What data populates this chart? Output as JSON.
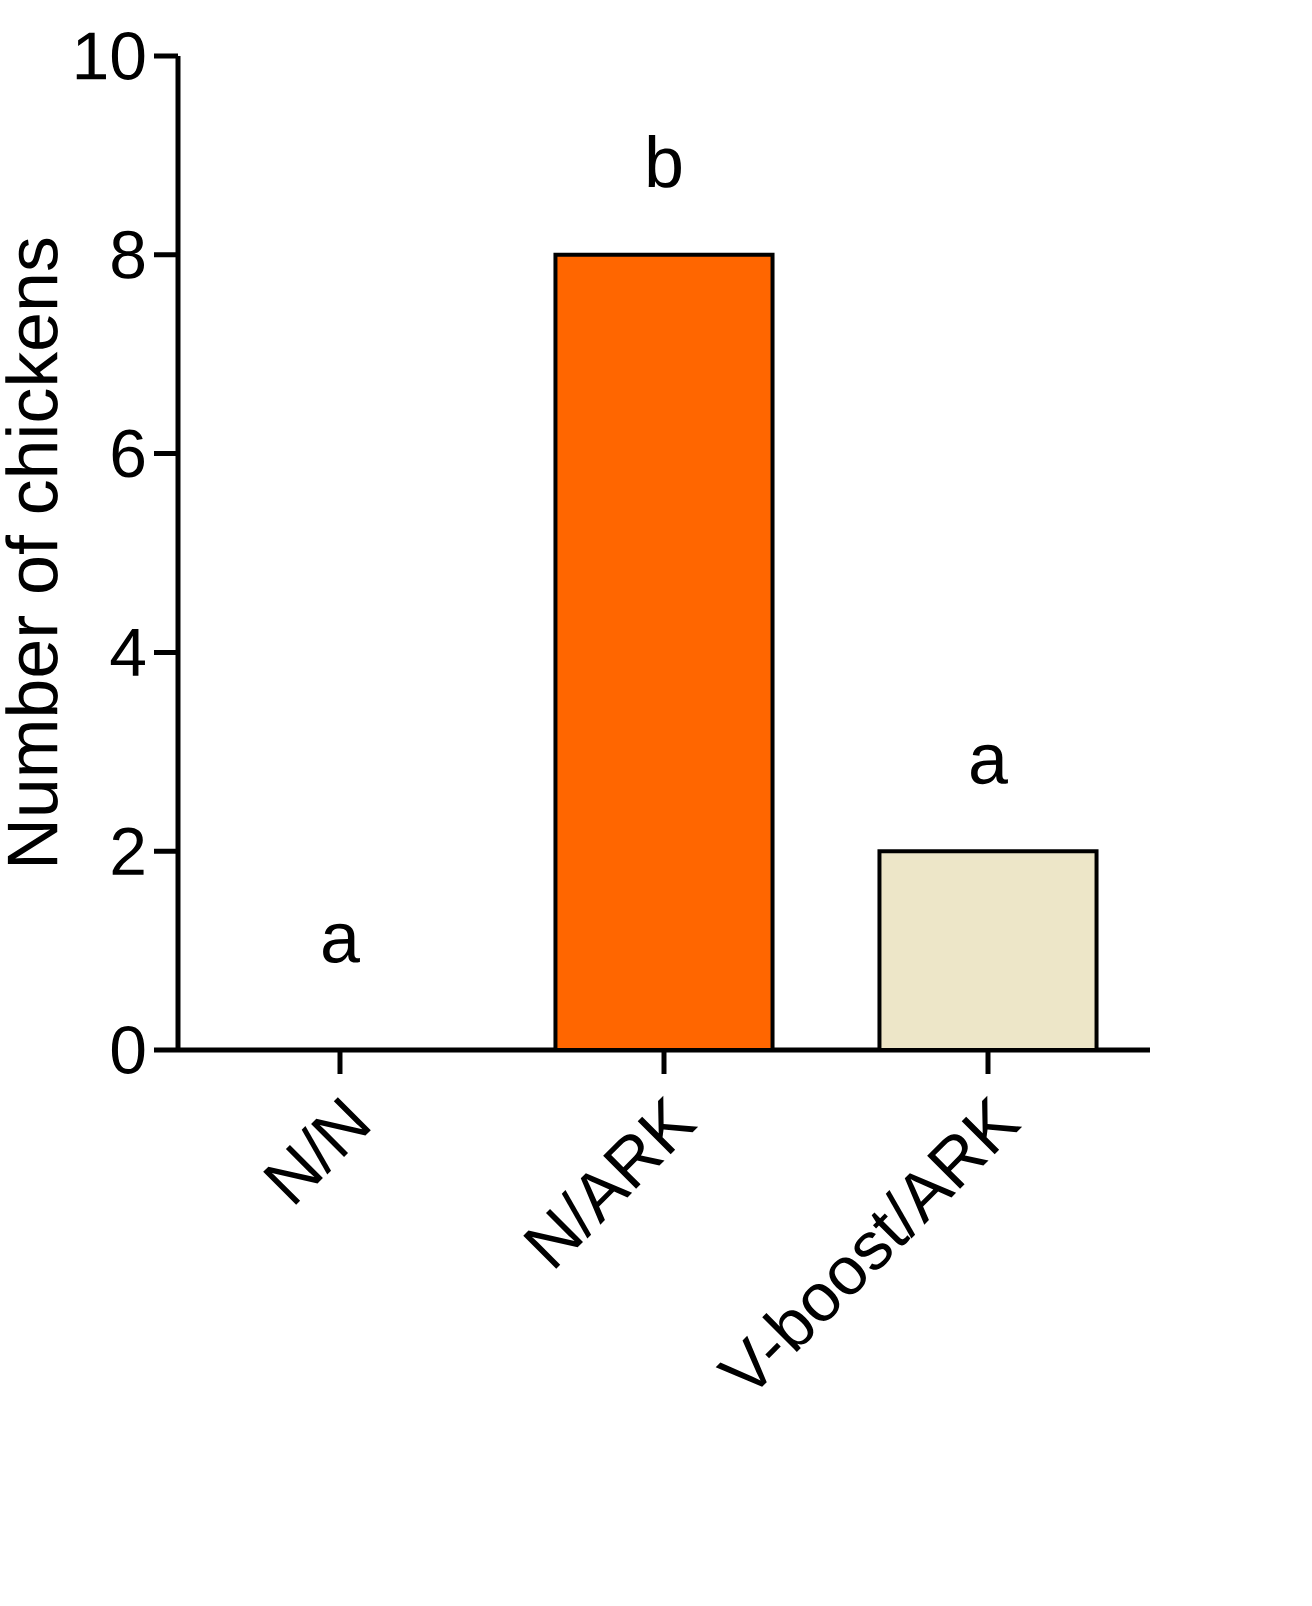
{
  "chart_data": {
    "type": "bar",
    "ylabel": "Number of chickens",
    "categories": [
      "N/N",
      "N/ARK",
      "V-boost/ARK"
    ],
    "values": [
      0,
      8,
      2
    ],
    "colors": [
      "#ffffff",
      "#ff6600",
      "#ede6c8"
    ],
    "ylim": [
      0,
      10
    ],
    "yticks": [
      0,
      2,
      4,
      6,
      8,
      10
    ],
    "grid": false,
    "annotations": [
      "a",
      "b",
      "a"
    ]
  }
}
